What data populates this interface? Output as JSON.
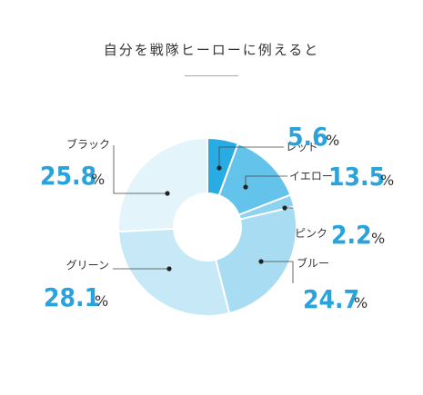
{
  "title": "自分を戦隊ヒーローに例えると",
  "chart_data": {
    "type": "pie",
    "title": "自分を戦隊ヒーローに例えると",
    "unit": "%",
    "categories": [
      "レッド",
      "イエロー",
      "ピンク",
      "ブルー",
      "グリーン",
      "ブラック"
    ],
    "values": [
      5.6,
      13.5,
      2.2,
      24.7,
      28.1,
      25.8
    ],
    "value_labels": [
      "5.6",
      "13.5",
      "2.2",
      "24.7",
      "28.1",
      "25.8"
    ],
    "colors": [
      "#29ace3",
      "#64c3ea",
      "#8dd2ef",
      "#a7dcf2",
      "#c6e8f7",
      "#e3f4fb"
    ],
    "legend": "none"
  }
}
